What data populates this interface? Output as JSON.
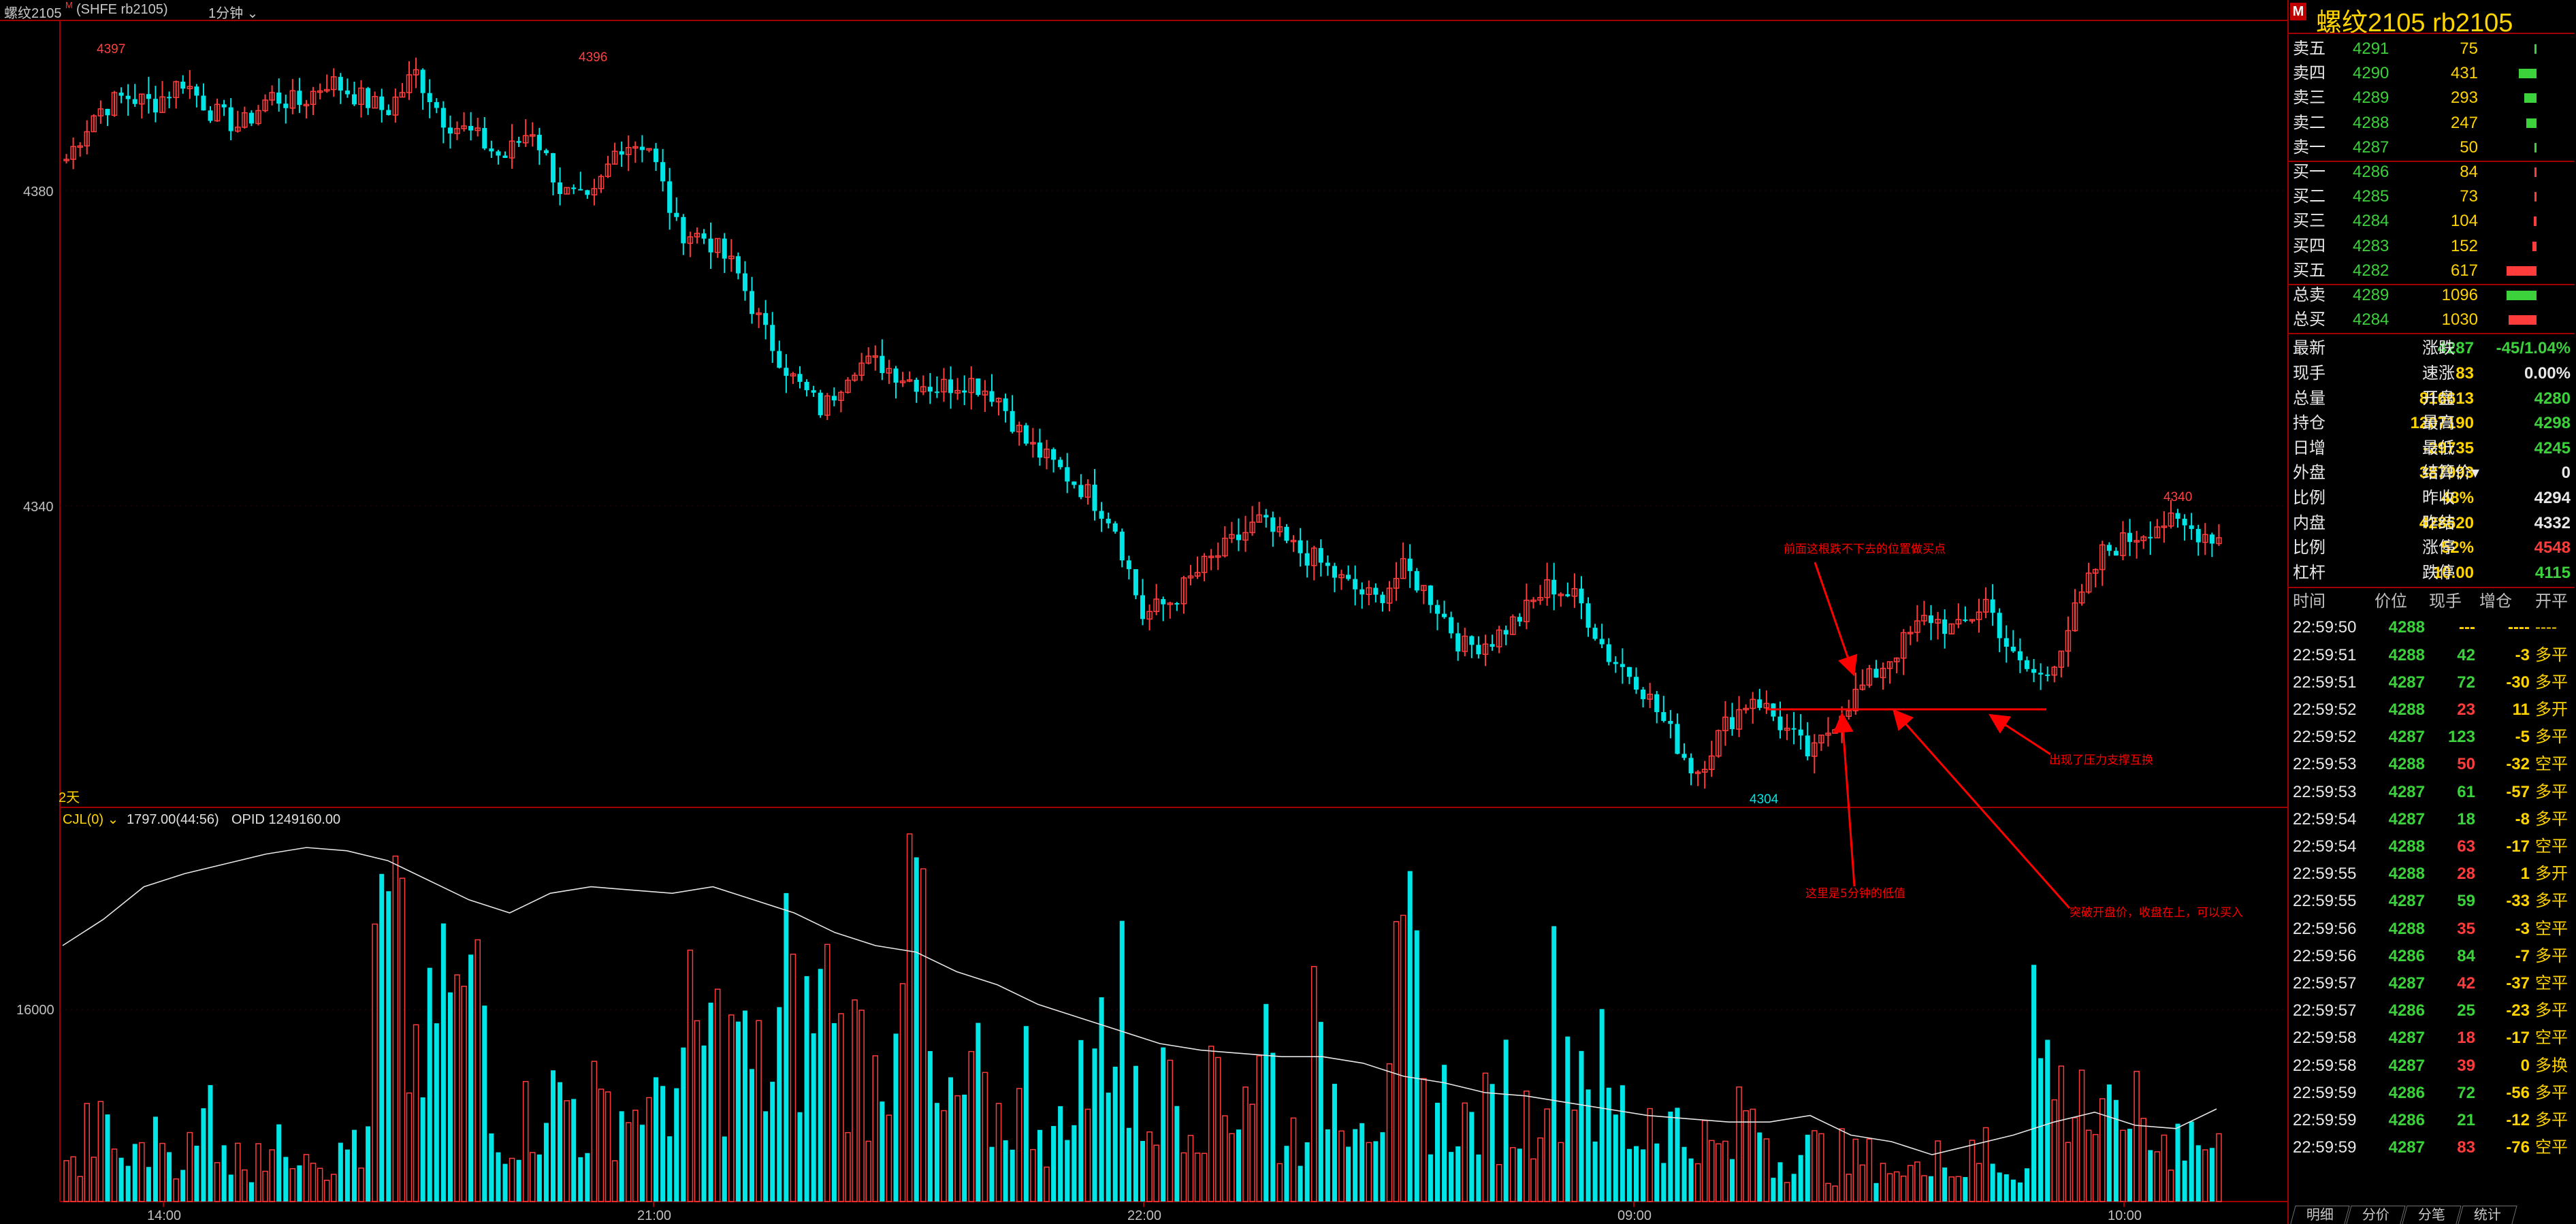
{
  "header": {
    "instrument": "螺纹2105",
    "superscript": "M",
    "exchange_code": "(SHFE rb2105)",
    "period": "1分钟"
  },
  "main_chart": {
    "price_ticks": [
      {
        "value": 4380,
        "label": "4380"
      },
      {
        "value": 4340,
        "label": "4340"
      }
    ],
    "high_marks": [
      "4397",
      "4396",
      "4340"
    ],
    "low_mark": "4304",
    "days_label": "2天",
    "support_price": 4308,
    "annotations": [
      "前面这根跌不下去的位置做买点",
      "出现了压力支撑互换",
      "这里是5分钟的低值",
      "突破开盘价，收盘在上，可以买入"
    ],
    "colors": {
      "up": "#ff3c3c",
      "down": "#00e5e5",
      "annotation": "#ff0000"
    }
  },
  "chart_data": {
    "type": "candlestick",
    "open_price_line": 4308,
    "marked_high": [
      4397,
      4396,
      4340
    ],
    "marked_low": 4304,
    "price_range": [
      4300,
      4400
    ],
    "x_labels": [
      "14:00",
      "21:00",
      "22:00",
      "09:00",
      "10:00"
    ],
    "volume_axis_tick": "16000",
    "volume_max": 35000,
    "indicator": {
      "name": "CJL(0)",
      "last_volume": "1797.00(44:56)",
      "opid": "OPID 1249160.00"
    },
    "series_anchors": {
      "close": [
        4384,
        4390,
        4392,
        4391,
        4394,
        4390,
        4388,
        4392,
        4391,
        4394,
        4392,
        4390,
        4395,
        4389,
        4387,
        4384,
        4388,
        4380,
        4378,
        4386,
        4386,
        4375,
        4374,
        4370,
        4362,
        4356,
        4352,
        4358,
        4358,
        4356,
        4355,
        4356,
        4354,
        4348,
        4345,
        4342,
        4338,
        4326,
        4328,
        4332,
        4335,
        4338,
        4335,
        4333,
        4330,
        4328,
        4332,
        4328,
        4322,
        4323,
        4326,
        4330,
        4328,
        4321,
        4318,
        4312,
        4306,
        4312,
        4316,
        4312,
        4308,
        4314,
        4318,
        4322,
        4326,
        4324,
        4328,
        4320,
        4318,
        4326,
        4334,
        4336,
        4338,
        4337,
        4336
      ],
      "volume": [
        4000,
        8000,
        5000,
        7000,
        6000,
        9000,
        5000,
        6000,
        7000,
        5000,
        6000,
        30000,
        18000,
        22000,
        24000,
        8000,
        10000,
        12000,
        9000,
        11000,
        10000,
        14000,
        19000,
        17000,
        15000,
        20000,
        24000,
        18000,
        15000,
        35000,
        10000,
        12000,
        10000,
        11000,
        8000,
        14000,
        22000,
        11000,
        13000,
        12000,
        12000,
        15000,
        8000,
        14000,
        13000,
        11000,
        22000,
        12000,
        9000,
        10000,
        10000,
        16000,
        18000,
        11000,
        8000,
        9000,
        7000,
        6000,
        9000,
        5000,
        6000,
        4000,
        5000,
        3000,
        6000,
        4000,
        5000,
        4000,
        17000,
        12000,
        9000,
        10000,
        7000,
        8000,
        6000
      ],
      "cumulative_ratio": [
        0.7,
        0.78,
        0.88,
        0.92,
        0.95,
        0.98,
        1.0,
        0.99,
        0.96,
        0.9,
        0.84,
        0.8,
        0.86,
        0.88,
        0.87,
        0.86,
        0.88,
        0.84,
        0.8,
        0.74,
        0.7,
        0.68,
        0.62,
        0.58,
        0.52,
        0.48,
        0.44,
        0.4,
        0.38,
        0.37,
        0.36,
        0.36,
        0.34,
        0.3,
        0.28,
        0.25,
        0.24,
        0.22,
        0.2,
        0.18,
        0.17,
        0.16,
        0.16,
        0.18,
        0.12,
        0.1,
        0.06,
        0.09,
        0.12,
        0.16,
        0.19,
        0.15,
        0.14,
        0.2
      ]
    }
  },
  "quote_panel": {
    "title": "螺纹2105  rb2105",
    "badge": "M",
    "asks": [
      {
        "label": "卖五",
        "price": "4291",
        "vol": "75",
        "ratio": 0.05
      },
      {
        "label": "卖四",
        "price": "4290",
        "vol": "431",
        "ratio": 0.55
      },
      {
        "label": "卖三",
        "price": "4289",
        "vol": "293",
        "ratio": 0.38
      },
      {
        "label": "卖二",
        "price": "4288",
        "vol": "247",
        "ratio": 0.32
      },
      {
        "label": "卖一",
        "price": "4287",
        "vol": "50",
        "ratio": 0.04
      }
    ],
    "bids": [
      {
        "label": "买一",
        "price": "4286",
        "vol": "84",
        "ratio": 0.06
      },
      {
        "label": "买二",
        "price": "4285",
        "vol": "73",
        "ratio": 0.05
      },
      {
        "label": "买三",
        "price": "4284",
        "vol": "104",
        "ratio": 0.08
      },
      {
        "label": "买四",
        "price": "4283",
        "vol": "152",
        "ratio": 0.12
      },
      {
        "label": "买五",
        "price": "4282",
        "vol": "617",
        "ratio": 0.92
      }
    ],
    "totals": [
      {
        "label": "总卖",
        "price": "4289",
        "vol": "1096",
        "ratio": 0.92,
        "side": "sell"
      },
      {
        "label": "总买",
        "price": "4284",
        "vol": "1030",
        "ratio": 0.86,
        "side": "buy"
      }
    ],
    "stats": [
      {
        "l1": "最新",
        "v1": "4287",
        "c1": "#3cd23c",
        "l2": "涨跌",
        "v2": "-45/1.04%",
        "c2": "#3cd23c"
      },
      {
        "l1": "现手",
        "v1": "83",
        "c1": "#ffd400",
        "l2": "速涨",
        "v2": "0.00%",
        "c2": "#e8e8e8"
      },
      {
        "l1": "总量",
        "v1": "816613",
        "c1": "#ffd400",
        "l2": "开盘",
        "v2": "4280",
        "c2": "#3cd23c"
      },
      {
        "l1": "持仓",
        "v1": "1207190",
        "c1": "#ffd400",
        "l2": "最高",
        "v2": "4298",
        "c2": "#3cd23c"
      },
      {
        "l1": "日增",
        "v1": "-29735",
        "c1": "#ffd400",
        "l2": "最低",
        "v2": "4245",
        "c2": "#3cd23c"
      },
      {
        "l1": "外盘",
        "v1": "387993",
        "c1": "#ffd400",
        "l2": "结算价▾",
        "v2": "0",
        "c2": "#e8e8e8"
      },
      {
        "l1": "比例",
        "v1": "48%",
        "c1": "#ffd400",
        "l2": "昨收",
        "v2": "4294",
        "c2": "#e8e8e8"
      },
      {
        "l1": "内盘",
        "v1": "428620",
        "c1": "#ffd400",
        "l2": "昨结",
        "v2": "4332",
        "c2": "#e8e8e8"
      },
      {
        "l1": "比例",
        "v1": "52%",
        "c1": "#ffd400",
        "l2": "涨停",
        "v2": "4548",
        "c2": "#ff3c3c"
      },
      {
        "l1": "杠杆",
        "v1": "10.00",
        "c1": "#ffd400",
        "l2": "跌停",
        "v2": "4115",
        "c2": "#3cd23c"
      }
    ],
    "trade_header": [
      "时间",
      "价位",
      "现手",
      "增仓",
      "开平"
    ],
    "trades": [
      {
        "time": "22:59:50",
        "price": "4288",
        "pc": "#3cd23c",
        "qty": "---",
        "qc": "#ffd400",
        "oi": "----",
        "type": "----"
      },
      {
        "time": "22:59:51",
        "price": "4288",
        "pc": "#3cd23c",
        "qty": "42",
        "qc": "#3cd23c",
        "oi": "-3",
        "type": "多平"
      },
      {
        "time": "22:59:51",
        "price": "4287",
        "pc": "#3cd23c",
        "qty": "72",
        "qc": "#3cd23c",
        "oi": "-30",
        "type": "多平"
      },
      {
        "time": "22:59:52",
        "price": "4288",
        "pc": "#3cd23c",
        "qty": "23",
        "qc": "#ff3c3c",
        "oi": "11",
        "type": "多开"
      },
      {
        "time": "22:59:52",
        "price": "4287",
        "pc": "#3cd23c",
        "qty": "123",
        "qc": "#3cd23c",
        "oi": "-5",
        "type": "多平"
      },
      {
        "time": "22:59:53",
        "price": "4288",
        "pc": "#3cd23c",
        "qty": "50",
        "qc": "#ff3c3c",
        "oi": "-32",
        "type": "空平"
      },
      {
        "time": "22:59:53",
        "price": "4287",
        "pc": "#3cd23c",
        "qty": "61",
        "qc": "#3cd23c",
        "oi": "-57",
        "type": "多平"
      },
      {
        "time": "22:59:54",
        "price": "4287",
        "pc": "#3cd23c",
        "qty": "18",
        "qc": "#3cd23c",
        "oi": "-8",
        "type": "多平"
      },
      {
        "time": "22:59:54",
        "price": "4288",
        "pc": "#3cd23c",
        "qty": "63",
        "qc": "#ff3c3c",
        "oi": "-17",
        "type": "空平"
      },
      {
        "time": "22:59:55",
        "price": "4288",
        "pc": "#3cd23c",
        "qty": "28",
        "qc": "#ff3c3c",
        "oi": "1",
        "type": "多开"
      },
      {
        "time": "22:59:55",
        "price": "4287",
        "pc": "#3cd23c",
        "qty": "59",
        "qc": "#3cd23c",
        "oi": "-33",
        "type": "多平"
      },
      {
        "time": "22:59:56",
        "price": "4288",
        "pc": "#3cd23c",
        "qty": "35",
        "qc": "#ff3c3c",
        "oi": "-3",
        "type": "空平"
      },
      {
        "time": "22:59:56",
        "price": "4286",
        "pc": "#3cd23c",
        "qty": "84",
        "qc": "#3cd23c",
        "oi": "-7",
        "type": "多平"
      },
      {
        "time": "22:59:57",
        "price": "4287",
        "pc": "#3cd23c",
        "qty": "42",
        "qc": "#ff3c3c",
        "oi": "-37",
        "type": "空平"
      },
      {
        "time": "22:59:57",
        "price": "4286",
        "pc": "#3cd23c",
        "qty": "25",
        "qc": "#3cd23c",
        "oi": "-23",
        "type": "多平"
      },
      {
        "time": "22:59:58",
        "price": "4287",
        "pc": "#3cd23c",
        "qty": "18",
        "qc": "#ff3c3c",
        "oi": "-17",
        "type": "空平"
      },
      {
        "time": "22:59:58",
        "price": "4287",
        "pc": "#3cd23c",
        "qty": "39",
        "qc": "#ff3c3c",
        "oi": "0",
        "type": "多换"
      },
      {
        "time": "22:59:59",
        "price": "4286",
        "pc": "#3cd23c",
        "qty": "72",
        "qc": "#3cd23c",
        "oi": "-56",
        "type": "多平"
      },
      {
        "time": "22:59:59",
        "price": "4286",
        "pc": "#3cd23c",
        "qty": "21",
        "qc": "#3cd23c",
        "oi": "-12",
        "type": "多平"
      },
      {
        "time": "22:59:59",
        "price": "4287",
        "pc": "#3cd23c",
        "qty": "83",
        "qc": "#ff3c3c",
        "oi": "-76",
        "type": "空平"
      }
    ],
    "tabs": [
      "明细",
      "分价",
      "分笔",
      "统计"
    ]
  }
}
